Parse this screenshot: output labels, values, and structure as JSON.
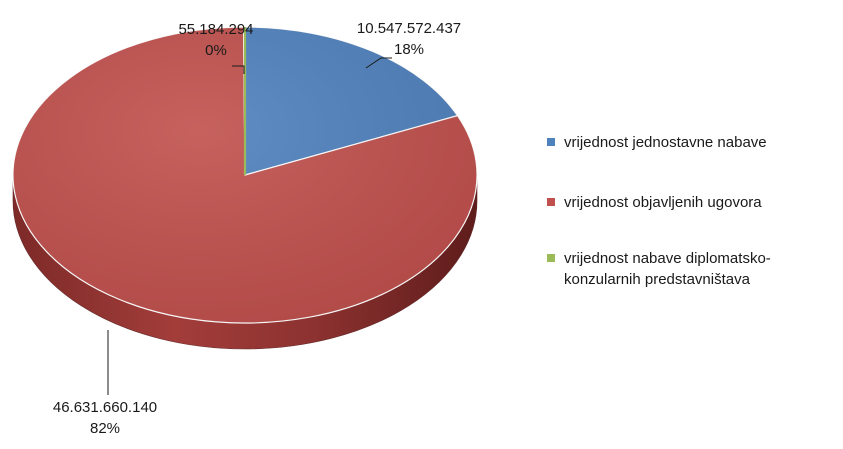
{
  "chart_data": {
    "type": "pie",
    "title": "",
    "style": "3d",
    "legend_position": "right",
    "slices": [
      {
        "name": "vrijednost jednostavne nabave",
        "value": 10547572437,
        "value_label": "10.547.572.437",
        "percent_label": "18%",
        "color": "#4f81bd",
        "legend_lines": [
          "vrijednost jednostavne nabave"
        ]
      },
      {
        "name": "vrijednost objavljenih ugovora",
        "value": 46631660140,
        "value_label": "46.631.660.140",
        "percent_label": "82%",
        "color": "#c0504d",
        "legend_lines": [
          "vrijednost objavljenih ugovora"
        ]
      },
      {
        "name": "vrijednost nabave diplomatsko-konzularnih predstavništava",
        "value": 55184294,
        "value_label": "55.184.294",
        "percent_label": "0%",
        "color": "#9bbb59",
        "legend_lines": [
          "vrijednost nabave diplomatsko-",
          "konzularnih predstavništava"
        ]
      }
    ]
  }
}
